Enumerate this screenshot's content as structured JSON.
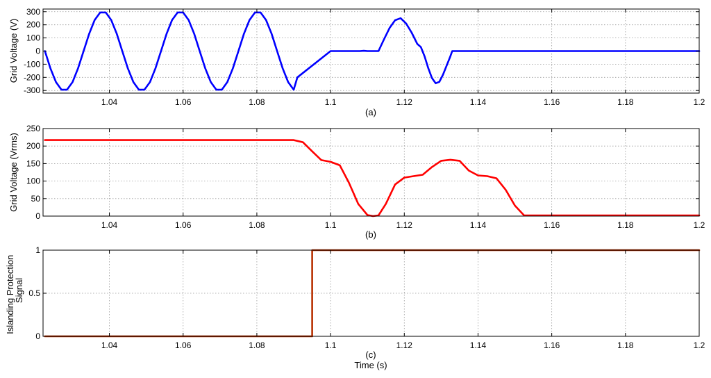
{
  "chart_data": [
    {
      "type": "line",
      "caption": "(a)",
      "ylabel": "Grid Voltage (V)",
      "xlabel": "",
      "xlim": [
        1.022,
        1.2
      ],
      "ylim": [
        -320,
        320
      ],
      "xticks": [
        1.04,
        1.06,
        1.08,
        1.1,
        1.12,
        1.14,
        1.16,
        1.18,
        1.2
      ],
      "xtick_labels": [
        "1.04",
        "1.06",
        "1.08",
        "1.1",
        "1.12",
        "1.14",
        "1.16",
        "1.18",
        "1.2"
      ],
      "yticks": [
        -300,
        -200,
        -100,
        0,
        100,
        200,
        300
      ],
      "ytick_labels": [
        "-300",
        "-200",
        "-100",
        "0",
        "100",
        "200",
        "300"
      ],
      "grid": true,
      "color": "#0000ff",
      "series": [
        {
          "x": [
            1.0225,
            1.024,
            1.0255,
            1.027,
            1.0285,
            1.03,
            1.0315,
            1.033,
            1.0345,
            1.036,
            1.0375,
            1.039,
            1.0405,
            1.042,
            1.0435,
            1.045,
            1.0465,
            1.048,
            1.0495,
            1.051,
            1.0525,
            1.054,
            1.0555,
            1.057,
            1.0585,
            1.06,
            1.0615,
            1.063,
            1.0645,
            1.066,
            1.0675,
            1.069,
            1.0705,
            1.072,
            1.0735,
            1.075,
            1.0765,
            1.078,
            1.0795,
            1.081,
            1.0825,
            1.084,
            1.0855,
            1.087,
            1.0885,
            1.09,
            1.091,
            1.1,
            1.108,
            1.109,
            1.11,
            1.113,
            1.1145,
            1.116,
            1.1175,
            1.119,
            1.1205,
            1.122,
            1.1235,
            1.1245,
            1.1255,
            1.1265,
            1.1275,
            1.1285,
            1.1295,
            1.1305,
            1.1315,
            1.1325,
            1.133,
            1.14,
            1.16,
            1.18,
            1.2
          ],
          "y": [
            0,
            -131,
            -236,
            -294,
            -294,
            -236,
            -131,
            0,
            131,
            236,
            294,
            294,
            236,
            131,
            0,
            -131,
            -236,
            -294,
            -294,
            -236,
            -131,
            0,
            131,
            236,
            294,
            294,
            236,
            131,
            0,
            -131,
            -236,
            -294,
            -294,
            -236,
            -131,
            0,
            131,
            236,
            294,
            294,
            236,
            131,
            0,
            -131,
            -236,
            -294,
            -200,
            0,
            0,
            2,
            0,
            0,
            90,
            175,
            235,
            250,
            210,
            140,
            55,
            30,
            -40,
            -130,
            -205,
            -245,
            -235,
            -180,
            -110,
            -40,
            0,
            0,
            0,
            0,
            0
          ]
        }
      ]
    },
    {
      "type": "line",
      "caption": "(b)",
      "ylabel": "Grid Voltage (Vrms)",
      "xlabel": "",
      "xlim": [
        1.022,
        1.2
      ],
      "ylim": [
        0,
        250
      ],
      "xticks": [
        1.04,
        1.06,
        1.08,
        1.1,
        1.12,
        1.14,
        1.16,
        1.18,
        1.2
      ],
      "xtick_labels": [
        "1.04",
        "1.06",
        "1.08",
        "1.1",
        "1.12",
        "1.14",
        "1.16",
        "1.18",
        "1.2"
      ],
      "yticks": [
        0,
        50,
        100,
        150,
        200,
        250
      ],
      "ytick_labels": [
        "0",
        "50",
        "100",
        "150",
        "200",
        "250"
      ],
      "grid": true,
      "color": "#ff0000",
      "series": [
        {
          "x": [
            1.0225,
            1.06,
            1.09,
            1.0925,
            1.095,
            1.0975,
            1.1,
            1.1025,
            1.105,
            1.1075,
            1.11,
            1.1115,
            1.113,
            1.115,
            1.1175,
            1.12,
            1.1225,
            1.125,
            1.1275,
            1.13,
            1.1325,
            1.135,
            1.1375,
            1.14,
            1.1425,
            1.145,
            1.1475,
            1.15,
            1.1525,
            1.16,
            1.2
          ],
          "y": [
            217,
            217,
            217,
            211,
            185,
            160,
            155,
            145,
            95,
            35,
            3,
            0,
            2,
            35,
            90,
            110,
            114,
            118,
            140,
            158,
            161,
            158,
            130,
            116,
            114,
            108,
            75,
            30,
            2,
            2,
            2
          ]
        }
      ]
    },
    {
      "type": "line",
      "caption": "(c)",
      "ylabel": "Islanding Protection Signal",
      "xlabel": "Time (s)",
      "xlim": [
        1.022,
        1.2
      ],
      "ylim": [
        0,
        1
      ],
      "xticks": [
        1.04,
        1.06,
        1.08,
        1.1,
        1.12,
        1.14,
        1.16,
        1.18,
        1.2
      ],
      "xtick_labels": [
        "1.04",
        "1.06",
        "1.08",
        "1.1",
        "1.12",
        "1.14",
        "1.16",
        "1.18",
        "1.2"
      ],
      "yticks": [
        0,
        0.5,
        1
      ],
      "ytick_labels": [
        "0",
        "0.5",
        "1"
      ],
      "grid": true,
      "color": "#b83000",
      "series": [
        {
          "x": [
            1.0225,
            1.095,
            1.095,
            1.2
          ],
          "y": [
            0,
            0,
            1,
            1
          ]
        }
      ]
    }
  ]
}
